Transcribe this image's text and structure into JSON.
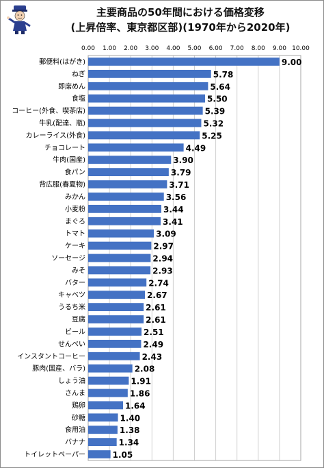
{
  "title_line1": "主要商品の50年間における価格変移",
  "title_line2": "(上昇倍率、東京都区部)(1970年から2020年)",
  "colors": {
    "bar": "#4472c4",
    "grid": "#d0d0d0",
    "text": "#000000"
  },
  "chart_data": {
    "type": "bar",
    "orientation": "horizontal",
    "title": "主要商品の50年間における価格変移 (上昇倍率、東京都区部)(1970年から2020年)",
    "xlim": [
      0,
      10
    ],
    "xticks": [
      "0.00",
      "1.00",
      "2.00",
      "3.00",
      "4.00",
      "5.00",
      "6.00",
      "7.00",
      "8.00",
      "9.00",
      "10.00"
    ],
    "grid": true,
    "legend": "none",
    "categories": [
      "郵便料(はがき)",
      "ねぎ",
      "即席めん",
      "食塩",
      "コーヒー(外食、喫茶店)",
      "牛乳(配達、瓶)",
      "カレーライス(外食)",
      "チョコレート",
      "牛肉(国産)",
      "食パン",
      "背広服(春夏物)",
      "みかん",
      "小麦粉",
      "まぐろ",
      "トマト",
      "ケーキ",
      "ソーセージ",
      "みそ",
      "バター",
      "キャベツ",
      "うるち米",
      "豆腐",
      "ビール",
      "せんべい",
      "インスタントコーヒー",
      "豚肉(国産、バラ)",
      "しょう油",
      "さんま",
      "鶏卵",
      "砂糖",
      "食用油",
      "バナナ",
      "トイレットペーパー"
    ],
    "values": [
      9.0,
      5.78,
      5.64,
      5.5,
      5.39,
      5.32,
      5.25,
      4.49,
      3.9,
      3.79,
      3.71,
      3.56,
      3.44,
      3.41,
      3.09,
      2.97,
      2.94,
      2.93,
      2.74,
      2.67,
      2.61,
      2.61,
      2.51,
      2.49,
      2.43,
      2.08,
      1.91,
      1.86,
      1.64,
      1.4,
      1.38,
      1.34,
      1.05
    ],
    "value_labels": [
      "9.00",
      "5.78",
      "5.64",
      "5.50",
      "5.39",
      "5.32",
      "5.25",
      "4.49",
      "3.90",
      "3.79",
      "3.71",
      "3.56",
      "3.44",
      "3.41",
      "3.09",
      "2.97",
      "2.94",
      "2.93",
      "2.74",
      "2.67",
      "2.61",
      "2.61",
      "2.51",
      "2.49",
      "2.43",
      "2.08",
      "1.91",
      "1.86",
      "1.64",
      "1.40",
      "1.38",
      "1.34",
      "1.05"
    ]
  }
}
